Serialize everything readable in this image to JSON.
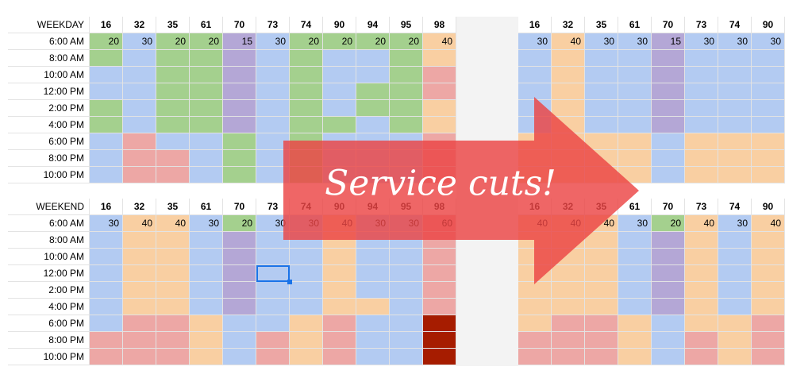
{
  "weekday": {
    "label": "WEEKDAY",
    "times": [
      "6:00 AM",
      "8:00 AM",
      "10:00 AM",
      "12:00 PM",
      "2:00 PM",
      "4:00 PM",
      "6:00 PM",
      "8:00 PM",
      "10:00 PM"
    ],
    "left": {
      "routes": [
        16,
        32,
        35,
        61,
        70,
        73,
        74,
        90,
        94,
        95,
        98
      ],
      "first_row": [
        20,
        30,
        20,
        20,
        15,
        30,
        20,
        20,
        20,
        20,
        40
      ],
      "colors": [
        [
          "#a4d08e",
          "#a4d08e",
          "#b3cbf2",
          "#b3cbf2",
          "#a4d08e",
          "#a4d08e",
          "#b3cbf2",
          "#b3cbf2",
          "#b3cbf2"
        ],
        [
          "#b3cbf2",
          "#b3cbf2",
          "#b3cbf2",
          "#b3cbf2",
          "#b3cbf2",
          "#b3cbf2",
          "#eda7a5",
          "#eda7a5",
          "#eda7a5"
        ],
        [
          "#a4d08e",
          "#a4d08e",
          "#a4d08e",
          "#a4d08e",
          "#a4d08e",
          "#a4d08e",
          "#b3cbf2",
          "#eda7a5",
          "#eda7a5"
        ],
        [
          "#a4d08e",
          "#a4d08e",
          "#a4d08e",
          "#a4d08e",
          "#a4d08e",
          "#a4d08e",
          "#b3cbf2",
          "#b3cbf2",
          "#b3cbf2"
        ],
        [
          "#b4a7d6",
          "#b4a7d6",
          "#b4a7d6",
          "#b4a7d6",
          "#b4a7d6",
          "#b4a7d6",
          "#a4d08e",
          "#a4d08e",
          "#a4d08e"
        ],
        [
          "#b3cbf2",
          "#b3cbf2",
          "#b3cbf2",
          "#b3cbf2",
          "#b3cbf2",
          "#b3cbf2",
          "#b3cbf2",
          "#b3cbf2",
          "#b3cbf2"
        ],
        [
          "#a4d08e",
          "#a4d08e",
          "#a4d08e",
          "#a4d08e",
          "#a4d08e",
          "#a4d08e",
          "#a4d08e",
          "#a4d08e",
          "#a4d08e"
        ],
        [
          "#a4d08e",
          "#b3cbf2",
          "#b3cbf2",
          "#b3cbf2",
          "#b3cbf2",
          "#a4d08e",
          "#b3cbf2",
          "#b3cbf2",
          "#b3cbf2"
        ],
        [
          "#a4d08e",
          "#b3cbf2",
          "#b3cbf2",
          "#a4d08e",
          "#a4d08e",
          "#b3cbf2",
          "#b3cbf2",
          "#b3cbf2",
          "#b3cbf2"
        ],
        [
          "#a4d08e",
          "#a4d08e",
          "#a4d08e",
          "#a4d08e",
          "#a4d08e",
          "#a4d08e",
          "#b3cbf2",
          "#b3cbf2",
          "#b3cbf2"
        ],
        [
          "#f9cfa2",
          "#f9cfa2",
          "#eda7a5",
          "#eda7a5",
          "#f9cfa2",
          "#f9cfa2",
          "#eda7a5",
          "#eda7a5",
          "#eda7a5"
        ]
      ]
    },
    "right": {
      "routes": [
        16,
        32,
        35,
        61,
        70,
        73,
        74,
        90
      ],
      "first_row": [
        30,
        40,
        30,
        30,
        15,
        30,
        30,
        30
      ],
      "colors": [
        [
          "#b3cbf2",
          "#b3cbf2",
          "#b3cbf2",
          "#b3cbf2",
          "#b3cbf2",
          "#b3cbf2",
          "#f9cfa2",
          "#f9cfa2",
          "#f9cfa2"
        ],
        [
          "#f9cfa2",
          "#f9cfa2",
          "#f9cfa2",
          "#f9cfa2",
          "#f9cfa2",
          "#f9cfa2",
          "#f9cfa2",
          "#f9cfa2",
          "#f9cfa2"
        ],
        [
          "#b3cbf2",
          "#b3cbf2",
          "#b3cbf2",
          "#b3cbf2",
          "#b3cbf2",
          "#b3cbf2",
          "#f9cfa2",
          "#f9cfa2",
          "#f9cfa2"
        ],
        [
          "#b3cbf2",
          "#b3cbf2",
          "#b3cbf2",
          "#b3cbf2",
          "#b3cbf2",
          "#b3cbf2",
          "#f9cfa2",
          "#f9cfa2",
          "#f9cfa2"
        ],
        [
          "#b4a7d6",
          "#b4a7d6",
          "#b4a7d6",
          "#b4a7d6",
          "#b4a7d6",
          "#b4a7d6",
          "#b3cbf2",
          "#b3cbf2",
          "#b3cbf2"
        ],
        [
          "#b3cbf2",
          "#b3cbf2",
          "#b3cbf2",
          "#b3cbf2",
          "#b3cbf2",
          "#b3cbf2",
          "#f9cfa2",
          "#f9cfa2",
          "#f9cfa2"
        ],
        [
          "#b3cbf2",
          "#b3cbf2",
          "#b3cbf2",
          "#b3cbf2",
          "#b3cbf2",
          "#b3cbf2",
          "#f9cfa2",
          "#f9cfa2",
          "#f9cfa2"
        ],
        [
          "#b3cbf2",
          "#b3cbf2",
          "#b3cbf2",
          "#b3cbf2",
          "#b3cbf2",
          "#b3cbf2",
          "#f9cfa2",
          "#f9cfa2",
          "#f9cfa2"
        ]
      ]
    }
  },
  "weekend": {
    "label": "WEEKEND",
    "times": [
      "6:00 AM",
      "8:00 AM",
      "10:00 AM",
      "12:00 PM",
      "2:00 PM",
      "4:00 PM",
      "6:00 PM",
      "8:00 PM",
      "10:00 PM"
    ],
    "left": {
      "routes": [
        16,
        32,
        35,
        61,
        70,
        73,
        74,
        90,
        94,
        95,
        98
      ],
      "first_row": [
        30,
        40,
        40,
        30,
        20,
        30,
        30,
        40,
        30,
        30,
        60
      ],
      "colors": [
        [
          "#b3cbf2",
          "#b3cbf2",
          "#b3cbf2",
          "#b3cbf2",
          "#b3cbf2",
          "#b3cbf2",
          "#b3cbf2",
          "#eda7a5",
          "#eda7a5"
        ],
        [
          "#f9cfa2",
          "#f9cfa2",
          "#f9cfa2",
          "#f9cfa2",
          "#f9cfa2",
          "#f9cfa2",
          "#eda7a5",
          "#eda7a5",
          "#eda7a5"
        ],
        [
          "#f9cfa2",
          "#f9cfa2",
          "#f9cfa2",
          "#f9cfa2",
          "#f9cfa2",
          "#f9cfa2",
          "#eda7a5",
          "#eda7a5",
          "#eda7a5"
        ],
        [
          "#b3cbf2",
          "#b3cbf2",
          "#b3cbf2",
          "#b3cbf2",
          "#b3cbf2",
          "#b3cbf2",
          "#f9cfa2",
          "#f9cfa2",
          "#f9cfa2"
        ],
        [
          "#a4d08e",
          "#b4a7d6",
          "#b4a7d6",
          "#b4a7d6",
          "#b4a7d6",
          "#b4a7d6",
          "#b3cbf2",
          "#b3cbf2",
          "#b3cbf2"
        ],
        [
          "#b3cbf2",
          "#b3cbf2",
          "#b3cbf2",
          "#b3cbf2",
          "#b3cbf2",
          "#b3cbf2",
          "#b3cbf2",
          "#eda7a5",
          "#eda7a5"
        ],
        [
          "#b3cbf2",
          "#b3cbf2",
          "#b3cbf2",
          "#b3cbf2",
          "#b3cbf2",
          "#b3cbf2",
          "#f9cfa2",
          "#f9cfa2",
          "#f9cfa2"
        ],
        [
          "#f9cfa2",
          "#f9cfa2",
          "#f9cfa2",
          "#f9cfa2",
          "#f9cfa2",
          "#f9cfa2",
          "#eda7a5",
          "#eda7a5",
          "#eda7a5"
        ],
        [
          "#b3cbf2",
          "#b3cbf2",
          "#b3cbf2",
          "#b3cbf2",
          "#b3cbf2",
          "#f9cfa2",
          "#b3cbf2",
          "#b3cbf2",
          "#b3cbf2"
        ],
        [
          "#b3cbf2",
          "#b3cbf2",
          "#b3cbf2",
          "#b3cbf2",
          "#b3cbf2",
          "#b3cbf2",
          "#b3cbf2",
          "#b3cbf2",
          "#b3cbf2"
        ],
        [
          "#eda7a5",
          "#eda7a5",
          "#eda7a5",
          "#eda7a5",
          "#eda7a5",
          "#eda7a5",
          "#a61c00",
          "#a61c00",
          "#a61c00"
        ]
      ]
    },
    "right": {
      "routes": [
        16,
        32,
        35,
        61,
        70,
        73,
        74,
        90
      ],
      "first_row": [
        40,
        40,
        40,
        30,
        20,
        40,
        30,
        40
      ],
      "colors": [
        [
          "#f9cfa2",
          "#f9cfa2",
          "#f9cfa2",
          "#f9cfa2",
          "#f9cfa2",
          "#f9cfa2",
          "#f9cfa2",
          "#eda7a5",
          "#eda7a5"
        ],
        [
          "#f9cfa2",
          "#f9cfa2",
          "#f9cfa2",
          "#f9cfa2",
          "#f9cfa2",
          "#f9cfa2",
          "#eda7a5",
          "#eda7a5",
          "#eda7a5"
        ],
        [
          "#f9cfa2",
          "#f9cfa2",
          "#f9cfa2",
          "#f9cfa2",
          "#f9cfa2",
          "#f9cfa2",
          "#eda7a5",
          "#eda7a5",
          "#eda7a5"
        ],
        [
          "#b3cbf2",
          "#b3cbf2",
          "#b3cbf2",
          "#b3cbf2",
          "#b3cbf2",
          "#b3cbf2",
          "#f9cfa2",
          "#f9cfa2",
          "#f9cfa2"
        ],
        [
          "#a4d08e",
          "#b4a7d6",
          "#b4a7d6",
          "#b4a7d6",
          "#b4a7d6",
          "#b4a7d6",
          "#b3cbf2",
          "#b3cbf2",
          "#b3cbf2"
        ],
        [
          "#f9cfa2",
          "#f9cfa2",
          "#f9cfa2",
          "#f9cfa2",
          "#f9cfa2",
          "#f9cfa2",
          "#f9cfa2",
          "#eda7a5",
          "#eda7a5"
        ],
        [
          "#b3cbf2",
          "#b3cbf2",
          "#b3cbf2",
          "#b3cbf2",
          "#b3cbf2",
          "#b3cbf2",
          "#f9cfa2",
          "#f9cfa2",
          "#f9cfa2"
        ],
        [
          "#f9cfa2",
          "#f9cfa2",
          "#f9cfa2",
          "#f9cfa2",
          "#f9cfa2",
          "#f9cfa2",
          "#eda7a5",
          "#eda7a5",
          "#eda7a5"
        ]
      ]
    }
  },
  "banner": "Service cuts!"
}
